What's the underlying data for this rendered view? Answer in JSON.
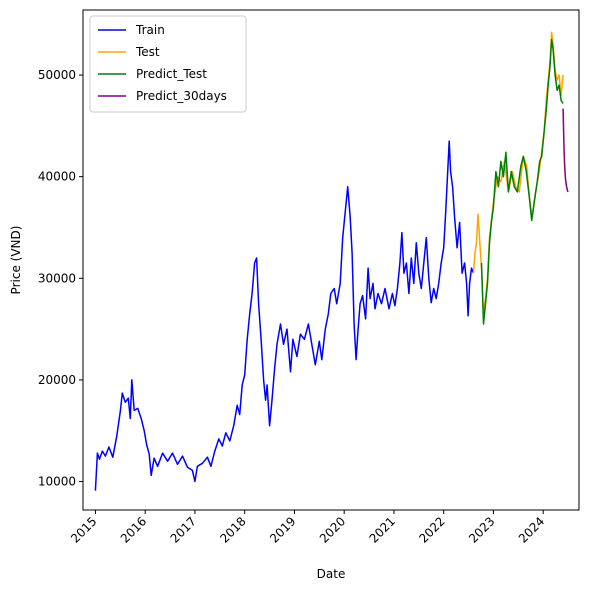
{
  "chart_data": {
    "type": "line",
    "title": "",
    "xlabel": "Date",
    "ylabel": "Price (VND)",
    "xlim": [
      2014.75,
      2024.72
    ],
    "ylim": [
      7200,
      56400
    ],
    "x_ticks": [
      {
        "value": 2015,
        "label": "2015"
      },
      {
        "value": 2016,
        "label": "2016"
      },
      {
        "value": 2017,
        "label": "2017"
      },
      {
        "value": 2018,
        "label": "2018"
      },
      {
        "value": 2019,
        "label": "2019"
      },
      {
        "value": 2020,
        "label": "2020"
      },
      {
        "value": 2021,
        "label": "2021"
      },
      {
        "value": 2022,
        "label": "2022"
      },
      {
        "value": 2023,
        "label": "2023"
      },
      {
        "value": 2024,
        "label": "2024"
      }
    ],
    "y_ticks": [
      {
        "value": 10000,
        "label": "10000"
      },
      {
        "value": 20000,
        "label": "20000"
      },
      {
        "value": 30000,
        "label": "30000"
      },
      {
        "value": 40000,
        "label": "40000"
      },
      {
        "value": 50000,
        "label": "50000"
      }
    ],
    "grid": false,
    "legend_position": "top-left",
    "series": [
      {
        "name": "Train",
        "color": "#0000ff",
        "points": [
          [
            2015.0,
            9100
          ],
          [
            2015.04,
            12800
          ],
          [
            2015.08,
            12200
          ],
          [
            2015.14,
            13000
          ],
          [
            2015.2,
            12500
          ],
          [
            2015.27,
            13400
          ],
          [
            2015.35,
            12400
          ],
          [
            2015.43,
            14500
          ],
          [
            2015.5,
            16900
          ],
          [
            2015.54,
            18700
          ],
          [
            2015.6,
            17800
          ],
          [
            2015.66,
            18200
          ],
          [
            2015.7,
            16200
          ],
          [
            2015.73,
            20000
          ],
          [
            2015.78,
            17000
          ],
          [
            2015.85,
            17200
          ],
          [
            2015.92,
            16200
          ],
          [
            2015.98,
            15000
          ],
          [
            2016.03,
            13600
          ],
          [
            2016.08,
            12700
          ],
          [
            2016.12,
            10600
          ],
          [
            2016.18,
            12300
          ],
          [
            2016.25,
            11500
          ],
          [
            2016.35,
            12800
          ],
          [
            2016.45,
            12000
          ],
          [
            2016.55,
            12800
          ],
          [
            2016.65,
            11700
          ],
          [
            2016.75,
            12500
          ],
          [
            2016.85,
            11400
          ],
          [
            2016.95,
            11100
          ],
          [
            2017.0,
            10000
          ],
          [
            2017.05,
            11500
          ],
          [
            2017.15,
            11800
          ],
          [
            2017.25,
            12400
          ],
          [
            2017.32,
            11500
          ],
          [
            2017.4,
            13000
          ],
          [
            2017.48,
            14200
          ],
          [
            2017.55,
            13500
          ],
          [
            2017.62,
            14800
          ],
          [
            2017.7,
            14000
          ],
          [
            2017.78,
            15500
          ],
          [
            2017.85,
            17500
          ],
          [
            2017.9,
            16600
          ],
          [
            2017.95,
            19500
          ],
          [
            2018.0,
            20500
          ],
          [
            2018.05,
            24000
          ],
          [
            2018.1,
            26500
          ],
          [
            2018.15,
            28500
          ],
          [
            2018.2,
            31500
          ],
          [
            2018.24,
            32000
          ],
          [
            2018.28,
            27500
          ],
          [
            2018.33,
            24000
          ],
          [
            2018.38,
            20000
          ],
          [
            2018.42,
            18000
          ],
          [
            2018.45,
            19500
          ],
          [
            2018.5,
            15500
          ],
          [
            2018.55,
            18000
          ],
          [
            2018.6,
            21000
          ],
          [
            2018.65,
            23500
          ],
          [
            2018.72,
            25500
          ],
          [
            2018.78,
            23500
          ],
          [
            2018.85,
            25000
          ],
          [
            2018.92,
            20800
          ],
          [
            2018.97,
            24000
          ],
          [
            2019.05,
            22300
          ],
          [
            2019.12,
            24500
          ],
          [
            2019.2,
            24000
          ],
          [
            2019.28,
            25500
          ],
          [
            2019.35,
            23500
          ],
          [
            2019.42,
            21500
          ],
          [
            2019.5,
            23800
          ],
          [
            2019.55,
            22000
          ],
          [
            2019.62,
            25000
          ],
          [
            2019.68,
            26500
          ],
          [
            2019.73,
            28500
          ],
          [
            2019.8,
            29000
          ],
          [
            2019.85,
            27500
          ],
          [
            2019.92,
            29500
          ],
          [
            2019.97,
            34000
          ],
          [
            2020.03,
            37000
          ],
          [
            2020.07,
            39000
          ],
          [
            2020.12,
            36000
          ],
          [
            2020.16,
            32500
          ],
          [
            2020.2,
            25500
          ],
          [
            2020.24,
            22000
          ],
          [
            2020.28,
            25000
          ],
          [
            2020.32,
            27500
          ],
          [
            2020.37,
            28300
          ],
          [
            2020.43,
            26000
          ],
          [
            2020.48,
            31000
          ],
          [
            2020.52,
            28000
          ],
          [
            2020.58,
            29500
          ],
          [
            2020.62,
            27000
          ],
          [
            2020.68,
            28500
          ],
          [
            2020.75,
            27500
          ],
          [
            2020.82,
            29000
          ],
          [
            2020.9,
            27000
          ],
          [
            2020.97,
            28500
          ],
          [
            2021.02,
            27300
          ],
          [
            2021.07,
            29000
          ],
          [
            2021.12,
            31500
          ],
          [
            2021.16,
            34500
          ],
          [
            2021.2,
            30500
          ],
          [
            2021.25,
            31500
          ],
          [
            2021.3,
            28500
          ],
          [
            2021.35,
            32000
          ],
          [
            2021.4,
            29500
          ],
          [
            2021.45,
            33500
          ],
          [
            2021.5,
            30500
          ],
          [
            2021.55,
            29000
          ],
          [
            2021.6,
            31500
          ],
          [
            2021.65,
            34000
          ],
          [
            2021.7,
            30000
          ],
          [
            2021.75,
            27600
          ],
          [
            2021.8,
            29000
          ],
          [
            2021.85,
            28000
          ],
          [
            2021.9,
            29500
          ],
          [
            2021.95,
            31500
          ],
          [
            2022.0,
            33000
          ],
          [
            2022.04,
            36500
          ],
          [
            2022.08,
            40500
          ],
          [
            2022.11,
            43500
          ],
          [
            2022.14,
            40500
          ],
          [
            2022.18,
            39000
          ],
          [
            2022.22,
            36000
          ],
          [
            2022.27,
            33000
          ],
          [
            2022.32,
            35500
          ],
          [
            2022.37,
            30500
          ],
          [
            2022.42,
            31500
          ],
          [
            2022.46,
            29500
          ],
          [
            2022.49,
            26300
          ],
          [
            2022.52,
            29500
          ],
          [
            2022.56,
            31000
          ],
          [
            2022.6,
            30500
          ]
        ]
      },
      {
        "name": "Test",
        "color": "#ffa500",
        "points": [
          [
            2022.6,
            30500
          ],
          [
            2022.63,
            32500
          ],
          [
            2022.66,
            33500
          ],
          [
            2022.69,
            36300
          ],
          [
            2022.72,
            34000
          ],
          [
            2022.76,
            31000
          ],
          [
            2022.8,
            26500
          ],
          [
            2022.84,
            28000
          ],
          [
            2022.88,
            30000
          ],
          [
            2022.92,
            34000
          ],
          [
            2023.0,
            37500
          ],
          [
            2023.08,
            40000
          ],
          [
            2023.15,
            39500
          ],
          [
            2023.22,
            41500
          ],
          [
            2023.3,
            38500
          ],
          [
            2023.38,
            40500
          ],
          [
            2023.45,
            39000
          ],
          [
            2023.52,
            38500
          ],
          [
            2023.6,
            42000
          ],
          [
            2023.67,
            41000
          ],
          [
            2023.72,
            38000
          ],
          [
            2023.78,
            36000
          ],
          [
            2023.85,
            38500
          ],
          [
            2023.92,
            40500
          ],
          [
            2023.97,
            42500
          ],
          [
            2024.02,
            44500
          ],
          [
            2024.06,
            47500
          ],
          [
            2024.1,
            49500
          ],
          [
            2024.14,
            51500
          ],
          [
            2024.17,
            54200
          ],
          [
            2024.2,
            53000
          ],
          [
            2024.24,
            50500
          ],
          [
            2024.28,
            49500
          ],
          [
            2024.32,
            50000
          ],
          [
            2024.36,
            48000
          ],
          [
            2024.4,
            50000
          ]
        ]
      },
      {
        "name": "Predict_Test",
        "color": "#008000",
        "points": [
          [
            2022.76,
            31500
          ],
          [
            2022.8,
            25500
          ],
          [
            2022.84,
            27500
          ],
          [
            2022.88,
            29500
          ],
          [
            2022.92,
            33500
          ],
          [
            2022.96,
            35500
          ],
          [
            2023.0,
            37000
          ],
          [
            2023.05,
            40500
          ],
          [
            2023.1,
            39000
          ],
          [
            2023.15,
            41500
          ],
          [
            2023.2,
            40000
          ],
          [
            2023.25,
            42400
          ],
          [
            2023.3,
            38500
          ],
          [
            2023.36,
            40500
          ],
          [
            2023.42,
            39000
          ],
          [
            2023.48,
            38500
          ],
          [
            2023.55,
            41000
          ],
          [
            2023.6,
            42000
          ],
          [
            2023.66,
            40500
          ],
          [
            2023.72,
            38000
          ],
          [
            2023.77,
            35700
          ],
          [
            2023.82,
            37500
          ],
          [
            2023.88,
            39500
          ],
          [
            2023.93,
            41500
          ],
          [
            2023.97,
            42000
          ],
          [
            2024.02,
            44500
          ],
          [
            2024.06,
            46500
          ],
          [
            2024.1,
            49000
          ],
          [
            2024.14,
            51000
          ],
          [
            2024.17,
            53500
          ],
          [
            2024.2,
            52500
          ],
          [
            2024.24,
            50000
          ],
          [
            2024.28,
            48500
          ],
          [
            2024.32,
            49000
          ],
          [
            2024.36,
            47500
          ],
          [
            2024.4,
            47200
          ]
        ]
      },
      {
        "name": "Predict_30days",
        "color": "#800080",
        "points": [
          [
            2024.4,
            46700
          ],
          [
            2024.41,
            44500
          ],
          [
            2024.42,
            42500
          ],
          [
            2024.43,
            41200
          ],
          [
            2024.44,
            40300
          ],
          [
            2024.45,
            39700
          ],
          [
            2024.46,
            39300
          ],
          [
            2024.47,
            39000
          ],
          [
            2024.48,
            38800
          ],
          [
            2024.49,
            38600
          ],
          [
            2024.5,
            38500
          ]
        ]
      }
    ]
  }
}
